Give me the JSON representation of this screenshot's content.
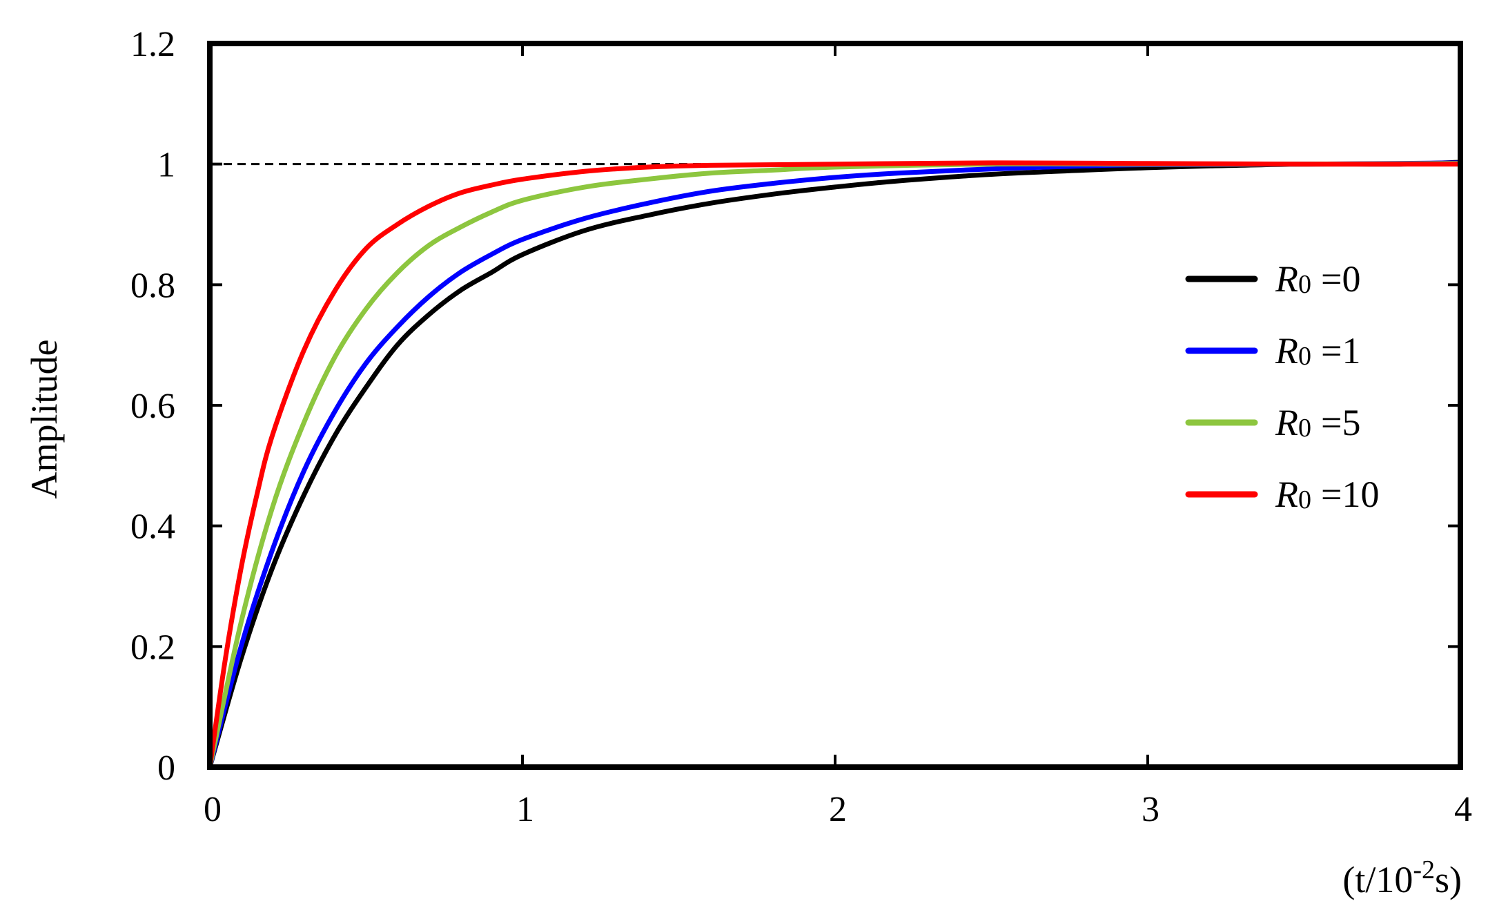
{
  "chart_data": {
    "type": "line",
    "title": "",
    "xlabel": "(t/10",
    "xlabel_exponent": "-2",
    "xlabel_suffix": "s)",
    "ylabel": "Amplitude",
    "xlim": [
      0,
      4
    ],
    "ylim": [
      0,
      1.2
    ],
    "x_ticks": [
      "0",
      "1",
      "2",
      "3",
      "4"
    ],
    "y_ticks": [
      "0",
      "0.2",
      "0.4",
      "0.6",
      "0.8",
      "1",
      "1.2"
    ],
    "grid": false,
    "legend_position": "right",
    "reference_line": {
      "y": 1,
      "style": "dashed",
      "color": "#000000"
    },
    "series": [
      {
        "name_var": "R",
        "name_sub": "0",
        "name_value": "=0",
        "color": "#000000",
        "x": [
          0,
          0.1,
          0.2,
          0.3,
          0.4,
          0.5,
          0.6,
          0.7,
          0.8,
          0.9,
          1.0,
          1.2,
          1.4,
          1.6,
          1.8,
          2.0,
          2.2,
          2.5,
          2.8,
          3.0,
          3.2,
          3.5,
          3.8,
          4.0
        ],
        "y": [
          0,
          0.18,
          0.33,
          0.45,
          0.55,
          0.63,
          0.7,
          0.75,
          0.79,
          0.82,
          0.85,
          0.89,
          0.915,
          0.935,
          0.95,
          0.962,
          0.972,
          0.983,
          0.99,
          0.994,
          0.997,
          1.0,
          1.0,
          1.003
        ]
      },
      {
        "name_var": "R",
        "name_sub": "0",
        "name_value": "=1",
        "color": "#0000ff",
        "x": [
          0,
          0.1,
          0.2,
          0.3,
          0.4,
          0.5,
          0.6,
          0.7,
          0.8,
          0.9,
          1.0,
          1.2,
          1.4,
          1.6,
          1.8,
          2.0,
          2.2,
          2.5,
          2.8,
          3.0,
          3.5,
          4.0
        ],
        "y": [
          0,
          0.2,
          0.36,
          0.49,
          0.59,
          0.67,
          0.73,
          0.78,
          0.82,
          0.85,
          0.875,
          0.91,
          0.935,
          0.955,
          0.968,
          0.978,
          0.985,
          0.992,
          0.997,
          0.999,
          1.0,
          1.002
        ]
      },
      {
        "name_var": "R",
        "name_sub": "0",
        "name_value": "=5",
        "color": "#8dc63f",
        "x": [
          0,
          0.1,
          0.2,
          0.3,
          0.4,
          0.5,
          0.6,
          0.7,
          0.8,
          0.9,
          1.0,
          1.2,
          1.4,
          1.6,
          1.8,
          2.0,
          2.5,
          3.0,
          3.5,
          4.0
        ],
        "y": [
          0,
          0.24,
          0.43,
          0.57,
          0.68,
          0.76,
          0.82,
          0.865,
          0.895,
          0.92,
          0.94,
          0.962,
          0.975,
          0.985,
          0.99,
          0.995,
          1.0,
          1.0,
          1.0,
          1.001
        ]
      },
      {
        "name_var": "R",
        "name_sub": "0",
        "name_value": "=10",
        "color": "#ff0000",
        "x": [
          0,
          0.05,
          0.1,
          0.15,
          0.2,
          0.3,
          0.4,
          0.5,
          0.6,
          0.7,
          0.8,
          0.9,
          1.0,
          1.2,
          1.4,
          1.6,
          2.0,
          2.5,
          3.0,
          3.5,
          4.0
        ],
        "y": [
          0,
          0.18,
          0.33,
          0.45,
          0.55,
          0.69,
          0.79,
          0.86,
          0.9,
          0.93,
          0.952,
          0.965,
          0.975,
          0.988,
          0.995,
          0.998,
          1.0,
          1.002,
          1.001,
          1.0,
          1.0
        ]
      }
    ]
  }
}
